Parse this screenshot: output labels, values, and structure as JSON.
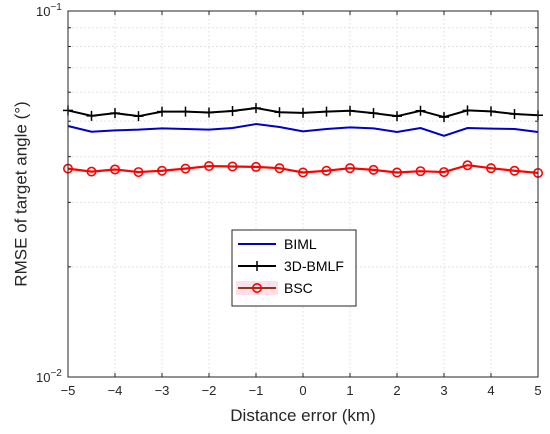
{
  "chart_data": {
    "type": "line",
    "title": "",
    "xlabel": "Distance error (km)",
    "ylabel": "RMSE of target angle (°)",
    "xlim": [
      -5,
      5
    ],
    "ylim": [
      0.01,
      0.1
    ],
    "yscale": "log",
    "grid": true,
    "legend_position": "center",
    "x_ticks": [
      -5,
      -4,
      -3,
      -2,
      -1,
      0,
      1,
      2,
      3,
      4,
      5
    ],
    "x_tick_labels": [
      "−5",
      "−4",
      "−3",
      "−2",
      "−1",
      "0",
      "1",
      "2",
      "3",
      "4",
      "5"
    ],
    "y_tick_labels": [
      {
        "value": 0.1,
        "base": "10",
        "exp": "−1"
      },
      {
        "value": 0.01,
        "base": "10",
        "exp": "−2"
      }
    ],
    "x": [
      -5,
      -4.5,
      -4,
      -3.5,
      -3,
      -2.5,
      -2,
      -1.5,
      -1,
      -0.5,
      0,
      0.5,
      1,
      1.5,
      2,
      2.5,
      3,
      3.5,
      4,
      4.5,
      5
    ],
    "series": [
      {
        "name": "BIML",
        "color": "#0000cc",
        "marker": "none",
        "values": [
          0.0485,
          0.0468,
          0.0472,
          0.0474,
          0.0478,
          0.0476,
          0.0474,
          0.0479,
          0.0491,
          0.0482,
          0.0469,
          0.0476,
          0.0481,
          0.0478,
          0.0467,
          0.0479,
          0.0456,
          0.0479,
          0.0477,
          0.0476,
          0.0467
        ]
      },
      {
        "name": "3D-BMLF",
        "color": "#000000",
        "marker": "plus",
        "values": [
          0.0535,
          0.0517,
          0.0526,
          0.0516,
          0.0531,
          0.0531,
          0.0528,
          0.0533,
          0.0543,
          0.0529,
          0.0527,
          0.0531,
          0.0534,
          0.0526,
          0.0516,
          0.0534,
          0.0513,
          0.0535,
          0.0532,
          0.0523,
          0.0519
        ]
      },
      {
        "name": "BSC",
        "color": "#ff0000",
        "line_color": "#8b3a1a",
        "marker": "circle",
        "values": [
          0.0371,
          0.0364,
          0.0369,
          0.0363,
          0.0366,
          0.0371,
          0.0377,
          0.0376,
          0.0375,
          0.0372,
          0.0362,
          0.0366,
          0.0372,
          0.0368,
          0.0362,
          0.0365,
          0.0363,
          0.0379,
          0.0372,
          0.0366,
          0.0361
        ]
      }
    ]
  },
  "colors": {
    "axis": "#262626",
    "grid": "#dcdcdc",
    "legend_fill_highlight": "#ffdfe9"
  }
}
